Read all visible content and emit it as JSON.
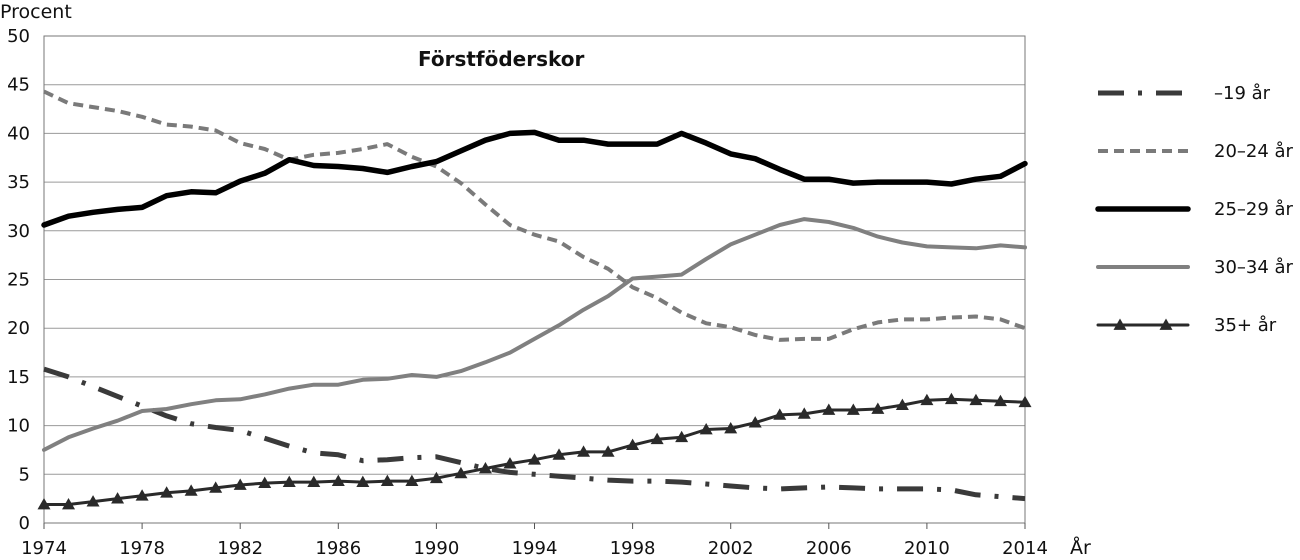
{
  "chart_data": {
    "type": "line",
    "title": "Förstföderskor",
    "ylabel": "Procent",
    "xlabel": "År",
    "ylim": [
      0,
      50
    ],
    "xlim": [
      1974,
      2014
    ],
    "yticks": [
      0,
      5,
      10,
      15,
      20,
      25,
      30,
      35,
      40,
      45,
      50
    ],
    "xticks": [
      1974,
      1978,
      1982,
      1986,
      1990,
      1994,
      1998,
      2002,
      2006,
      2010,
      2014
    ],
    "grid": "horizontal",
    "legend_position": "right",
    "x": [
      1974,
      1975,
      1976,
      1977,
      1978,
      1979,
      1980,
      1981,
      1982,
      1983,
      1984,
      1985,
      1986,
      1987,
      1988,
      1989,
      1990,
      1991,
      1992,
      1993,
      1994,
      1995,
      1996,
      1997,
      1998,
      1999,
      2000,
      2001,
      2002,
      2003,
      2004,
      2005,
      2006,
      2007,
      2008,
      2009,
      2010,
      2011,
      2012,
      2013,
      2014
    ],
    "series": [
      {
        "name": "–19 år",
        "style": "dashdot",
        "color": "#3a3a3a",
        "values": [
          15.8,
          15.0,
          14.0,
          13.0,
          12.0,
          11.0,
          10.2,
          9.8,
          9.5,
          8.7,
          7.9,
          7.2,
          7.0,
          6.4,
          6.5,
          6.7,
          6.8,
          6.2,
          5.6,
          5.2,
          5.0,
          4.8,
          4.6,
          4.4,
          4.3,
          4.3,
          4.2,
          4.0,
          3.8,
          3.6,
          3.5,
          3.6,
          3.7,
          3.6,
          3.5,
          3.5,
          3.5,
          3.4,
          2.9,
          2.7,
          2.5
        ]
      },
      {
        "name": "20–24 år",
        "style": "dashed",
        "color": "#7a7a7a",
        "values": [
          44.3,
          43.1,
          42.7,
          42.3,
          41.7,
          40.9,
          40.7,
          40.3,
          39.0,
          38.4,
          37.3,
          37.8,
          38.0,
          38.4,
          38.9,
          37.6,
          36.6,
          34.9,
          32.7,
          30.6,
          29.6,
          28.9,
          27.3,
          26.1,
          24.2,
          23.1,
          21.6,
          20.5,
          20.1,
          19.3,
          18.8,
          18.9,
          18.9,
          19.9,
          20.6,
          20.9,
          20.9,
          21.1,
          21.2,
          20.9,
          20.0
        ]
      },
      {
        "name": "25–29 år",
        "style": "solid-thick",
        "color": "#000000",
        "values": [
          30.6,
          31.5,
          31.9,
          32.2,
          32.4,
          33.6,
          34.0,
          33.9,
          35.1,
          35.9,
          37.3,
          36.7,
          36.6,
          36.4,
          36.0,
          36.6,
          37.1,
          38.2,
          39.3,
          40.0,
          40.1,
          39.3,
          39.3,
          38.9,
          38.9,
          38.9,
          40.0,
          39.0,
          37.9,
          37.4,
          36.3,
          35.3,
          35.3,
          34.9,
          35.0,
          35.0,
          35.0,
          34.8,
          35.3,
          35.6,
          36.9
        ]
      },
      {
        "name": "30–34 år",
        "style": "solid",
        "color": "#808080",
        "values": [
          7.5,
          8.8,
          9.7,
          10.5,
          11.5,
          11.7,
          12.2,
          12.6,
          12.7,
          13.2,
          13.8,
          14.2,
          14.2,
          14.7,
          14.8,
          15.2,
          15.0,
          15.6,
          16.5,
          17.5,
          18.9,
          20.3,
          21.9,
          23.3,
          25.1,
          25.3,
          25.5,
          27.1,
          28.6,
          29.6,
          30.6,
          31.2,
          30.9,
          30.3,
          29.4,
          28.8,
          28.4,
          28.3,
          28.2,
          28.5,
          28.3
        ]
      },
      {
        "name": "35+ år",
        "style": "triangles",
        "color": "#2a2a2a",
        "values": [
          1.9,
          1.9,
          2.2,
          2.5,
          2.8,
          3.1,
          3.3,
          3.6,
          3.9,
          4.1,
          4.2,
          4.2,
          4.3,
          4.2,
          4.3,
          4.3,
          4.6,
          5.1,
          5.6,
          6.1,
          6.5,
          7.0,
          7.3,
          7.3,
          8.0,
          8.6,
          8.8,
          9.6,
          9.7,
          10.3,
          11.1,
          11.2,
          11.6,
          11.6,
          11.7,
          12.1,
          12.6,
          12.7,
          12.6,
          12.5,
          12.4
        ]
      }
    ]
  }
}
